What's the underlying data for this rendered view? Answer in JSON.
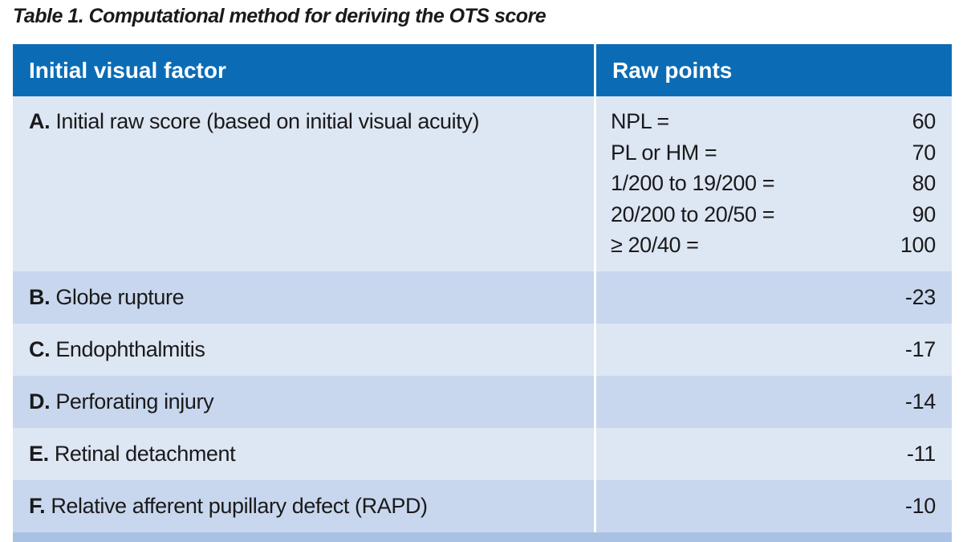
{
  "title": "Table 1. Computational method for deriving the OTS score",
  "table": {
    "header": [
      "Initial visual factor",
      "Raw points"
    ],
    "rows": [
      {
        "letter": "A.",
        "text": "Initial raw score (based on initial visual acuity)",
        "points": [
          {
            "label": "NPL =",
            "value": 60
          },
          {
            "label": "PL or HM =",
            "value": 70
          },
          {
            "label": "1/200 to 19/200 =",
            "value": 80
          },
          {
            "label": "20/200 to 20/50 =",
            "value": 90
          },
          {
            "label": "≥ 20/40 =",
            "value": 100
          }
        ]
      },
      {
        "letter": "B.",
        "text": "Globe rupture",
        "value": -23
      },
      {
        "letter": "C.",
        "text": "Endophthalmitis",
        "value": -17
      },
      {
        "letter": "D.",
        "text": "Perforating injury",
        "value": -14
      },
      {
        "letter": "E.",
        "text": "Retinal detachment",
        "value": -11
      },
      {
        "letter": "F.",
        "text": "Relative afferent pupillary defect (RAPD)",
        "value": -10
      }
    ]
  }
}
